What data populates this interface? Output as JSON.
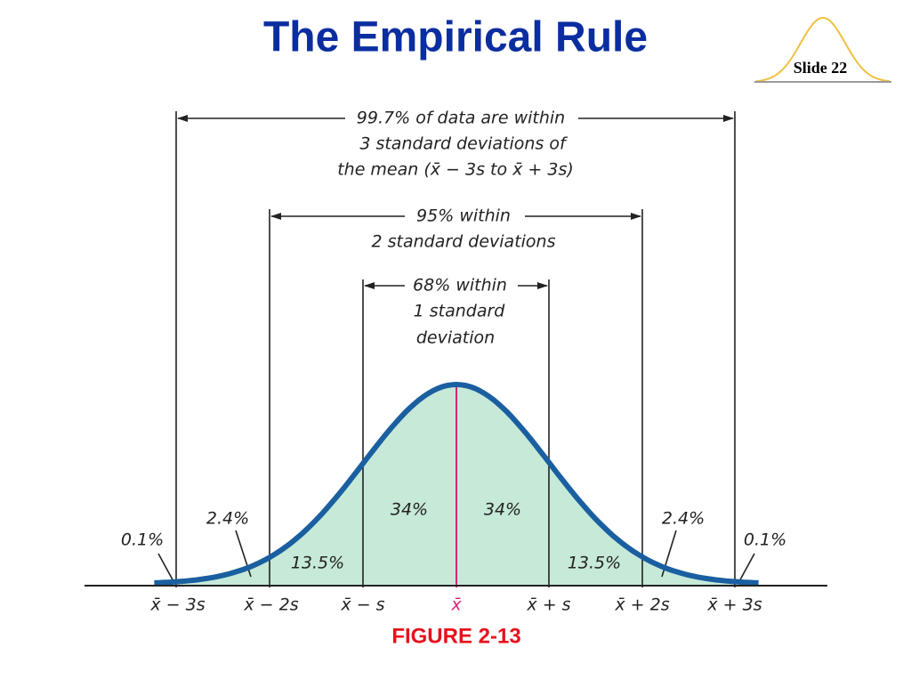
{
  "header": {
    "title": "The Empirical Rule",
    "slide": "Slide 22"
  },
  "brackets": [
    {
      "lines": [
        "99.7% of data are within",
        "3 standard deviations of",
        "the mean (x̄ − 3s to x̄ + 3s)"
      ]
    },
    {
      "lines": [
        "95% within",
        "2 standard deviations"
      ]
    },
    {
      "lines": [
        "68% within",
        "1 standard",
        "deviation"
      ]
    }
  ],
  "region_labels": [
    "0.1%",
    "2.4%",
    "13.5%",
    "34%",
    "34%",
    "13.5%",
    "2.4%",
    "0.1%"
  ],
  "axis_labels": [
    "x̄ − 3s",
    "x̄ − 2s",
    "x̄ − s",
    "x̄",
    "x̄ + s",
    "x̄ + 2s",
    "x̄ + 3s"
  ],
  "caption": "FIGURE 2-13"
}
